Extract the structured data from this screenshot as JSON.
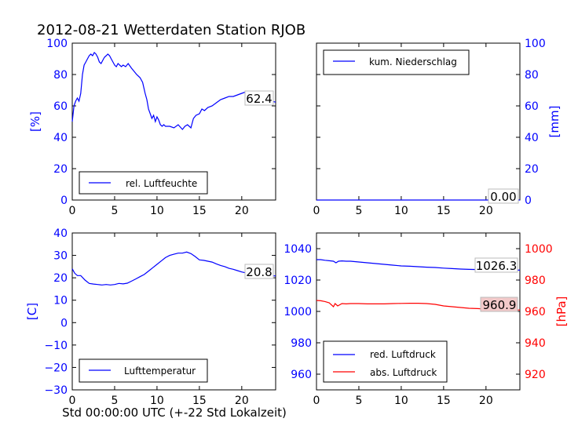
{
  "title": "2012-08-21 Wetterdaten Station RJOB",
  "colors": {
    "blue": "#0000ff",
    "red": "#ff0000",
    "axis": "#000000",
    "badge_bg": "#f2c9c9"
  },
  "chart_data": [
    {
      "id": "humidity",
      "type": "line",
      "xlim": [
        0,
        24
      ],
      "ylim": [
        0,
        100
      ],
      "xticks": [
        0,
        5,
        10,
        15,
        20
      ],
      "yticks": [
        0,
        20,
        40,
        60,
        80,
        100
      ],
      "ylabel": "[%]",
      "legend": "lower-left",
      "last_value_label": "62.4",
      "series": [
        {
          "name": "rel. Luftfeuchte",
          "color": "#0000ff",
          "x": [
            0,
            0.2,
            0.4,
            0.6,
            0.8,
            1.0,
            1.2,
            1.4,
            1.6,
            1.8,
            2.0,
            2.2,
            2.4,
            2.6,
            2.8,
            3.0,
            3.2,
            3.4,
            3.6,
            3.8,
            4.0,
            4.2,
            4.4,
            4.6,
            4.8,
            5.0,
            5.2,
            5.4,
            5.6,
            5.8,
            6.0,
            6.3,
            6.6,
            7.0,
            7.3,
            7.6,
            8.0,
            8.3,
            8.6,
            8.8,
            9.0,
            9.2,
            9.4,
            9.6,
            9.8,
            10.0,
            10.2,
            10.4,
            10.6,
            10.8,
            11.0,
            11.5,
            12.0,
            12.5,
            13.0,
            13.3,
            13.6,
            14.0,
            14.3,
            14.6,
            15.0,
            15.3,
            15.6,
            16.0,
            16.5,
            17.0,
            17.5,
            18.0,
            18.5,
            19.0,
            19.5,
            20.0,
            20.5,
            21.0,
            21.5,
            22.0,
            22.5,
            23.0,
            23.5,
            24.0
          ],
          "y": [
            50,
            60,
            63,
            65,
            63,
            68,
            80,
            86,
            88,
            90,
            92,
            93,
            92,
            94,
            93,
            91,
            88,
            87,
            89,
            91,
            92,
            93,
            92,
            90,
            88,
            86,
            85,
            87,
            86,
            85,
            86,
            85,
            87,
            84,
            82,
            80,
            78,
            75,
            68,
            64,
            58,
            55,
            52,
            54,
            50,
            53,
            51,
            48,
            47,
            48,
            47,
            47,
            46,
            48,
            45,
            47,
            48,
            46,
            52,
            54,
            55,
            58,
            57,
            59,
            60,
            62,
            64,
            65,
            66,
            66,
            67,
            68,
            69,
            68,
            67,
            66,
            65,
            64,
            63,
            62.4
          ]
        }
      ]
    },
    {
      "id": "precip",
      "type": "line",
      "xlim": [
        0,
        24
      ],
      "ylim": [
        0,
        100
      ],
      "xticks": [
        0,
        5,
        10,
        15,
        20
      ],
      "yticks": [
        0,
        20,
        40,
        60,
        80,
        100
      ],
      "ylabel": "[mm]",
      "legend": "upper-left",
      "last_value_label": "0.00",
      "series": [
        {
          "name": "kum. Niederschlag",
          "color": "#0000ff",
          "x": [
            0,
            24
          ],
          "y": [
            0,
            0
          ]
        }
      ]
    },
    {
      "id": "temperature",
      "type": "line",
      "xlim": [
        0,
        24
      ],
      "ylim": [
        -30,
        40
      ],
      "xticks": [
        0,
        5,
        10,
        15,
        20
      ],
      "yticks": [
        -30,
        -20,
        -10,
        0,
        10,
        20,
        30,
        40
      ],
      "ylabel": "[C]",
      "xlabel": "Std 00:00:00 UTC (+-22 Std Lokalzeit)",
      "legend": "lower-left",
      "last_value_label": "20.8",
      "series": [
        {
          "name": "Lufttemperatur",
          "color": "#0000ff",
          "x": [
            0,
            0.3,
            0.6,
            1.0,
            1.5,
            2.0,
            2.5,
            3.0,
            3.5,
            4.0,
            4.5,
            5.0,
            5.5,
            6.0,
            6.5,
            7.0,
            7.5,
            8.0,
            8.5,
            9.0,
            9.5,
            10.0,
            10.5,
            11.0,
            11.5,
            12.0,
            12.5,
            13.0,
            13.5,
            14.0,
            14.5,
            15.0,
            15.5,
            16.0,
            16.5,
            17.0,
            17.5,
            18.0,
            18.5,
            19.0,
            19.5,
            20.0,
            20.5,
            21.0,
            21.5,
            22.0,
            22.5,
            23.0,
            23.5,
            24.0
          ],
          "y": [
            24,
            22,
            21,
            21,
            19,
            17.5,
            17.2,
            17,
            16.8,
            17,
            16.8,
            17,
            17.5,
            17.3,
            17.6,
            18.5,
            19.5,
            20.5,
            21.5,
            23,
            24.5,
            26,
            27.5,
            29,
            30,
            30.5,
            31,
            31,
            31.5,
            30.8,
            29.5,
            28,
            27.8,
            27.4,
            27,
            26.2,
            25.5,
            25,
            24.2,
            23.8,
            23.2,
            22.6,
            22.2,
            22,
            21.9,
            21.8,
            21.5,
            21.2,
            21,
            20.8
          ]
        }
      ]
    },
    {
      "id": "pressure",
      "type": "line",
      "xlim": [
        0,
        24
      ],
      "ylim": [
        950,
        1050
      ],
      "yticks": [
        960,
        980,
        1000,
        1020,
        1040
      ],
      "ylim_right": [
        910,
        1010
      ],
      "yticks_right": [
        920,
        940,
        960,
        980,
        1000
      ],
      "xticks": [
        0,
        5,
        10,
        15,
        20
      ],
      "ylabel_right": "[hPa]",
      "legend": "lower-left",
      "series": [
        {
          "name": "red. Luftdruck",
          "color": "#0000ff",
          "axis": "left",
          "last_value_label": "1026.3",
          "x": [
            0,
            0.5,
            1.0,
            1.5,
            2.0,
            2.3,
            2.6,
            3.0,
            3.5,
            4.0,
            5,
            6,
            7,
            8,
            9,
            10,
            11,
            12,
            13,
            14,
            15,
            16,
            17,
            18,
            19,
            20,
            21,
            22,
            23,
            24
          ],
          "y": [
            1033,
            1033,
            1032.6,
            1032.3,
            1032,
            1031,
            1032,
            1032.2,
            1032,
            1032,
            1031.5,
            1031,
            1030.5,
            1030,
            1029.5,
            1029,
            1028.8,
            1028.5,
            1028.2,
            1028,
            1027.6,
            1027.3,
            1027,
            1026.8,
            1026.7,
            1026.6,
            1026.5,
            1026.4,
            1026.3,
            1026.3
          ]
        },
        {
          "name": "abs. Luftdruck",
          "color": "#ff0000",
          "axis": "right",
          "last_value_label": "960.9",
          "x": [
            0,
            0.5,
            1.0,
            1.5,
            2.0,
            2.2,
            2.5,
            3.0,
            3.5,
            4.0,
            5,
            6,
            7,
            8,
            9,
            10,
            11,
            12,
            13,
            14,
            15,
            16,
            17,
            18,
            19,
            20,
            21,
            22,
            23,
            24
          ],
          "y": [
            967,
            966.8,
            966.3,
            965.5,
            963,
            965,
            963.5,
            965,
            964.8,
            965,
            965,
            964.8,
            964.8,
            964.8,
            965,
            965.1,
            965.2,
            965.2,
            965,
            964.5,
            963.5,
            963,
            962.5,
            962,
            961.8,
            961.5,
            961.3,
            961,
            960.9,
            960.9
          ]
        }
      ]
    }
  ]
}
